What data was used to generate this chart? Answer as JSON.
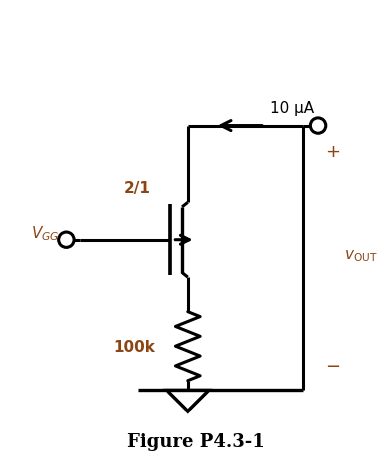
{
  "title": "Figure P4.3-1",
  "title_fontsize": 13,
  "background_color": "#ffffff",
  "line_color": "#000000",
  "text_color_brown": "#8B4513",
  "line_width": 2.2,
  "fig_width": 3.91,
  "fig_height": 4.66,
  "dpi": 100,
  "xlim": [
    0,
    10
  ],
  "ylim": [
    0,
    12
  ],
  "labels": {
    "current": "10 μA",
    "ratio": "2/1",
    "vgg": "$V_{GG}$",
    "resistor": "100k",
    "vout": "$v_{\\mathrm{OUT}}$",
    "plus": "+",
    "minus": "−"
  }
}
